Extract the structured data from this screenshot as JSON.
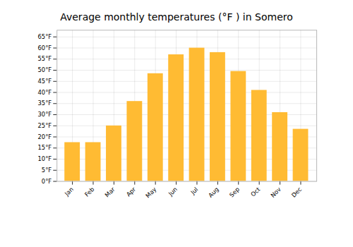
{
  "chart_data": {
    "type": "bar",
    "title": "Average monthly temperatures (°F ) in Somero",
    "categories": [
      "Jan",
      "Feb",
      "Mar",
      "Apr",
      "May",
      "Jun",
      "Jul",
      "Aug",
      "Sep",
      "Oct",
      "Nov",
      "Dec"
    ],
    "values": [
      17.5,
      17.5,
      25.0,
      36.0,
      48.5,
      57.0,
      60.0,
      58.0,
      49.5,
      41.0,
      31.0,
      23.5
    ],
    "color": "#FFBB33",
    "ylim": [
      0,
      68
    ],
    "yticks": [
      {
        "value": 0,
        "label": "0°F"
      },
      {
        "value": 5,
        "label": "5°F"
      },
      {
        "value": 10,
        "label": "10°F"
      },
      {
        "value": 15,
        "label": "15°F"
      },
      {
        "value": 20,
        "label": "20°F"
      },
      {
        "value": 25,
        "label": "25°F"
      },
      {
        "value": 30,
        "label": "30°F"
      },
      {
        "value": 35,
        "label": "35°F"
      },
      {
        "value": 40,
        "label": "40°F"
      },
      {
        "value": 45,
        "label": "45°F"
      },
      {
        "value": 50,
        "label": "50°F"
      },
      {
        "value": 55,
        "label": "55°F"
      },
      {
        "value": 60,
        "label": "60°F"
      },
      {
        "value": 65,
        "label": "65°F"
      }
    ],
    "grid": true
  }
}
